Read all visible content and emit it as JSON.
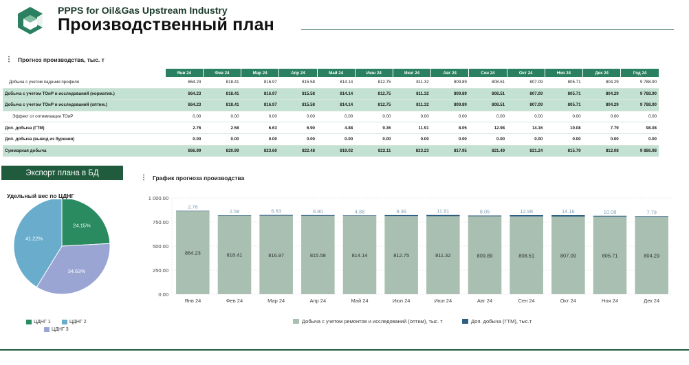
{
  "header": {
    "app_title": "PPPS for Oil&Gas Upstream Industry",
    "page_title": "Производственный план"
  },
  "table_section": {
    "title": "Прогноз производства, тыс. т",
    "columns": [
      "Янв 24",
      "Фев 24",
      "Мар 24",
      "Апр 24",
      "Май 24",
      "Июн 24",
      "Июл 24",
      "Авг 24",
      "Сен 24",
      "Окт 24",
      "Ноя 24",
      "Дек 24",
      "Год 24"
    ],
    "rows": [
      {
        "label": "Добыча с учетом падения профиля",
        "style": "ind1",
        "values": [
          "864.23",
          "818.41",
          "816.97",
          "815.58",
          "814.14",
          "812.75",
          "811.32",
          "809.89",
          "808.51",
          "807.09",
          "805.71",
          "804.29",
          "9 788.90"
        ]
      },
      {
        "label": "Добыча с учетом ТОиР и исследований (норматив.)",
        "style": "hl",
        "values": [
          "864.23",
          "818.41",
          "816.97",
          "815.58",
          "814.14",
          "812.75",
          "811.32",
          "809.89",
          "808.51",
          "807.09",
          "805.71",
          "804.29",
          "9 788.90"
        ]
      },
      {
        "label": "Добыча с учетом ТОиР и исследований (оптим.)",
        "style": "hl",
        "values": [
          "864.23",
          "818.41",
          "816.97",
          "815.58",
          "814.14",
          "812.75",
          "811.32",
          "809.89",
          "808.51",
          "807.09",
          "805.71",
          "804.29",
          "9 788.90"
        ]
      },
      {
        "label": "Эффект от оптимизации ТОиР",
        "style": "ind2",
        "values": [
          "0.00",
          "0.00",
          "0.00",
          "0.00",
          "0.00",
          "0.00",
          "0.00",
          "0.00",
          "0.00",
          "0.00",
          "0.00",
          "0.00",
          "0.00"
        ]
      },
      {
        "label": "Доп. добыча (ГТМ)",
        "style": "b",
        "values": [
          "2.76",
          "2.58",
          "6.63",
          "6.90",
          "4.88",
          "9.36",
          "11.91",
          "8.05",
          "12.98",
          "14.16",
          "10.08",
          "7.79",
          "98.08"
        ]
      },
      {
        "label": "Доп. добыча (вывод из бурения)",
        "style": "b",
        "values": [
          "0.00",
          "0.00",
          "0.00",
          "0.00",
          "0.00",
          "0.00",
          "0.00",
          "0.00",
          "0.00",
          "0.00",
          "0.00",
          "0.00",
          "0.00"
        ]
      },
      {
        "label": "Суммарная добыча",
        "style": "sum",
        "values": [
          "866.99",
          "820.99",
          "823.60",
          "822.48",
          "819.02",
          "822.11",
          "823.23",
          "817.95",
          "821.49",
          "821.24",
          "815.79",
          "812.08",
          "9 886.98"
        ]
      }
    ]
  },
  "export_button": {
    "label": "Экспорт плана в БД"
  },
  "pie": {
    "title": "Удельный вес по ЦДНГ",
    "slices": [
      {
        "name": "ЦДНГ 1",
        "value": 24.15,
        "label": "24.15%",
        "color": "#2a8a60"
      },
      {
        "name": "ЦДНГ 3",
        "value": 34.63,
        "label": "34.63%",
        "color": "#9aa5d4"
      },
      {
        "name": "ЦДНГ 2",
        "value": 41.22,
        "label": "41.22%",
        "color": "#6aaccc"
      }
    ],
    "legend": [
      "ЦДНГ 1",
      "ЦДНГ 2",
      "ЦДНГ 3"
    ]
  },
  "chart_section": {
    "title": "График прогноза производства"
  },
  "chart_data": {
    "type": "bar",
    "stacked": true,
    "categories": [
      "Янв 24",
      "Фев 24",
      "Мар 24",
      "Апр 24",
      "Май 24",
      "Июн 24",
      "Июл 24",
      "Авг 24",
      "Сен 24",
      "Окт 24",
      "Ноя 24",
      "Дек 24"
    ],
    "series": [
      {
        "name": "Добыча с учетом ремонтов и исследований (оптим), тыс. т",
        "color": "#a8bfb2",
        "values": [
          864.23,
          818.41,
          816.97,
          815.58,
          814.14,
          812.75,
          811.32,
          809.89,
          808.51,
          807.09,
          805.71,
          804.29
        ],
        "labels": [
          "864.23",
          "818.41",
          "816.97",
          "815.58",
          "814.14",
          "812.75",
          "811.32",
          "809.89",
          "808.51",
          "807.09",
          "805.71",
          "804.29"
        ]
      },
      {
        "name": "Доп. добыча (ГТМ), тыс.т",
        "color": "#2e5f80",
        "values": [
          2.76,
          2.58,
          6.63,
          6.9,
          4.88,
          9.36,
          11.91,
          8.05,
          12.98,
          14.16,
          10.08,
          7.79
        ],
        "labels": [
          "2.76",
          "2.58",
          "6.63",
          "6.90",
          "4.88",
          "9.36",
          "11.91",
          "8.05",
          "12.98",
          "14.16",
          "10.08",
          "7.79"
        ]
      }
    ],
    "ylim": [
      0,
      1000
    ],
    "yticks": [
      "0.00",
      "250.00",
      "500.00",
      "750.00",
      "1 000.00"
    ],
    "grid": true,
    "legend": "bottom"
  }
}
